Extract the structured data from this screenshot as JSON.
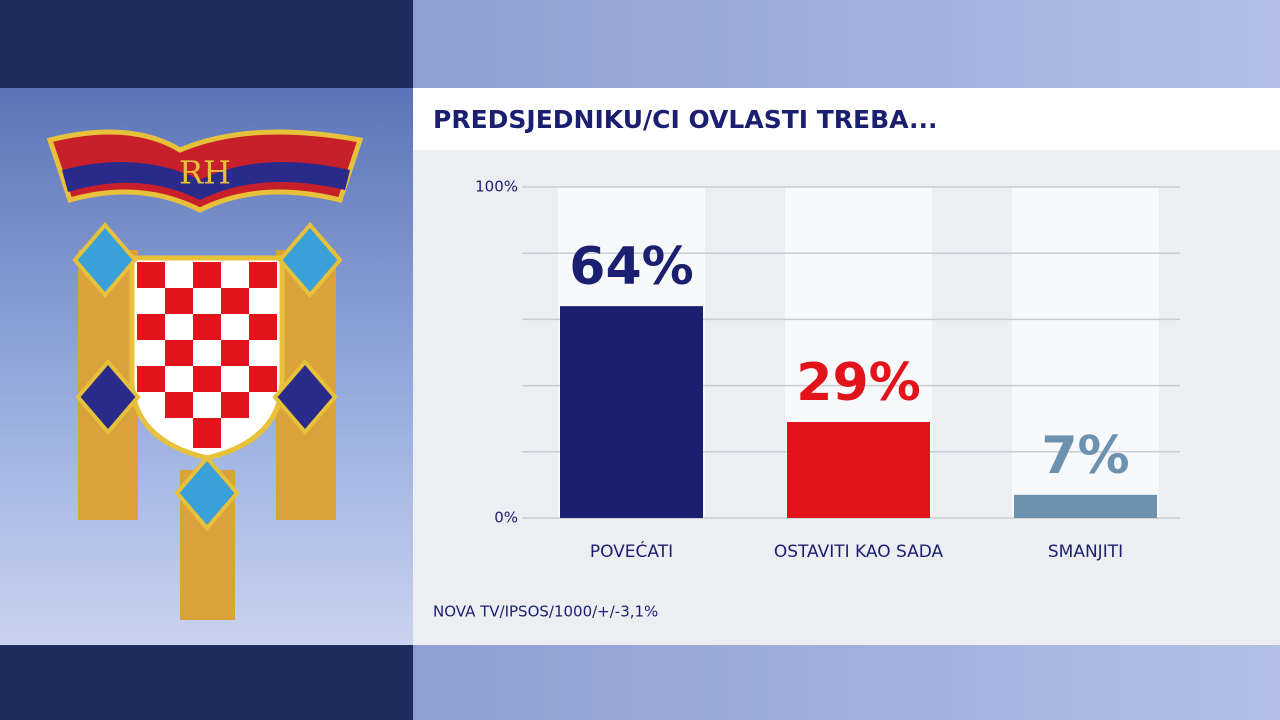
{
  "chart_data": {
    "type": "bar",
    "title": "PREDSJEDNIKU/CI OVLASTI TREBA...",
    "categories": [
      "POVEĆATI",
      "OSTAVITI KAO SADA",
      "SMANJITI"
    ],
    "series": [
      {
        "values": [
          64,
          29,
          7
        ],
        "value_labels": [
          "64%",
          "29%",
          "7%"
        ],
        "colors": [
          "#1b1f6f",
          "#e2131a",
          "#6d92b0"
        ]
      }
    ],
    "ylim": [
      0,
      100
    ],
    "yticks": [
      {
        "value": 0,
        "label": "0%"
      },
      {
        "value": 100,
        "label": "100%"
      }
    ],
    "ygrid": [
      0,
      20,
      40,
      60,
      80,
      100
    ],
    "grid": true,
    "source": "NOVA TV/IPSOS/1000/+/-3,1%"
  }
}
